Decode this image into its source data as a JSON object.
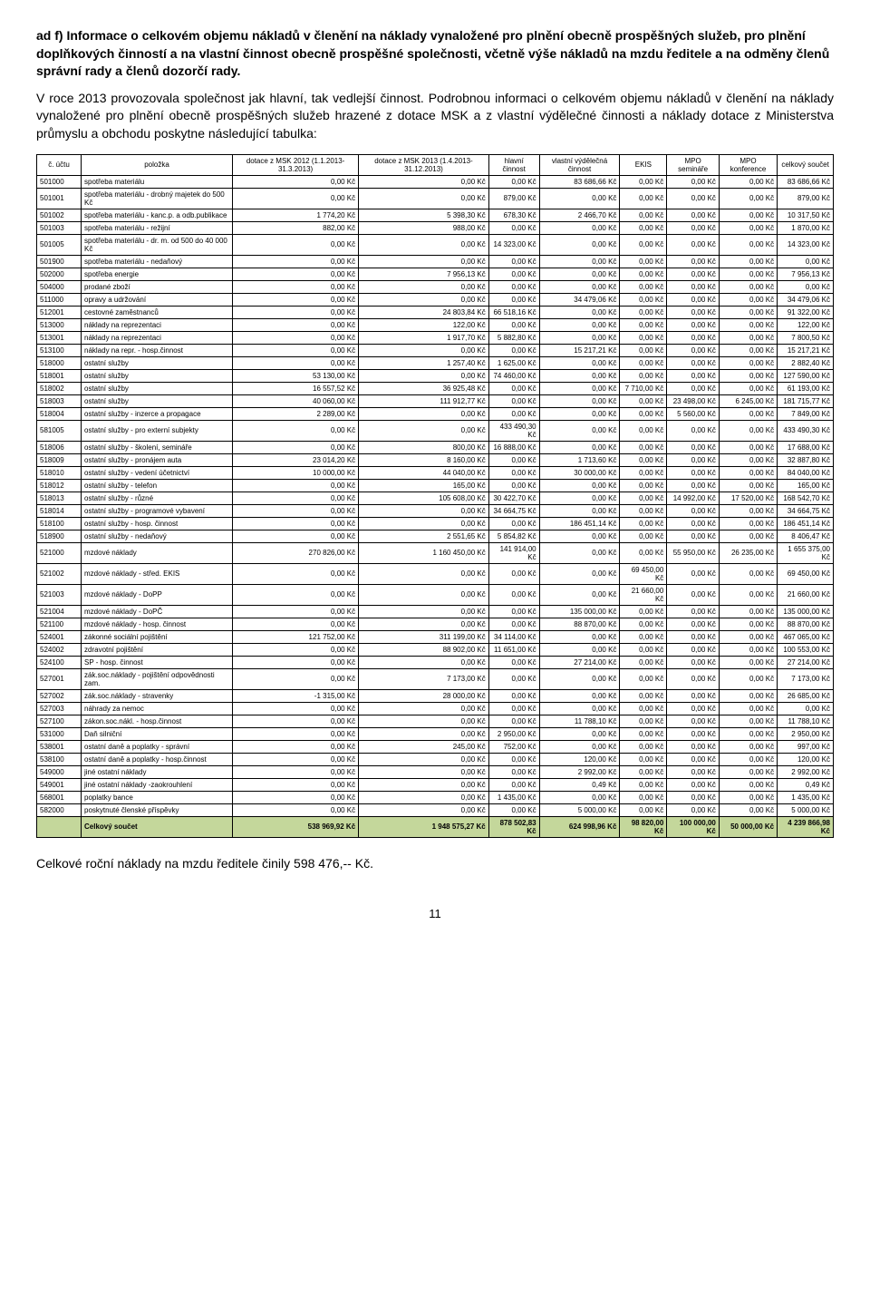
{
  "heading": {
    "prefix": "ad f)",
    "title": "Informace o celkovém objemu nákladů v členění na náklady vynaložené pro plnění obecně prospěšných služeb, pro plnění doplňkových činností a na vlastní činnost obecně prospěšné společnosti, včetně výše nákladů na mzdu ředitele a na odměny členů správní rady a členů dozorčí rady."
  },
  "paragraph": "V roce 2013 provozovala společnost jak hlavní, tak vedlejší činnost. Podrobnou informaci o celkovém objemu nákladů v členění na náklady vynaložené pro plnění obecně prospěšných služeb hrazené z dotace MSK a z vlastní výdělečné činnosti a náklady dotace z Ministerstva průmyslu a obchodu poskytne následující tabulka:",
  "columns": [
    "č. účtu",
    "položka",
    "dotace z MSK 2012 (1.1.2013-31.3.2013)",
    "dotace z MSK 2013 (1.4.2013-31.12.2013)",
    "hlavní činnost",
    "vlastní výdělečná činnost",
    "EKIS",
    "MPO semináře",
    "MPO konference",
    "celkový součet"
  ],
  "rows": [
    [
      "501000",
      "spotřeba materiálu",
      "0,00 Kč",
      "0,00 Kč",
      "0,00 Kč",
      "83 686,66 Kč",
      "0,00 Kč",
      "0,00 Kč",
      "0,00 Kč",
      "83 686,66 Kč"
    ],
    [
      "501001",
      "spotřeba materiálu - drobný majetek do 500 Kč",
      "0,00 Kč",
      "0,00 Kč",
      "879,00 Kč",
      "0,00 Kč",
      "0,00 Kč",
      "0,00 Kč",
      "0,00 Kč",
      "879,00 Kč"
    ],
    [
      "501002",
      "spotřeba materiálu - kanc.p. a odb.publikace",
      "1 774,20 Kč",
      "5 398,30 Kč",
      "678,30 Kč",
      "2 466,70 Kč",
      "0,00 Kč",
      "0,00 Kč",
      "0,00 Kč",
      "10 317,50 Kč"
    ],
    [
      "501003",
      "spotřeba materiálu - režijní",
      "882,00 Kč",
      "988,00 Kč",
      "0,00 Kč",
      "0,00 Kč",
      "0,00 Kč",
      "0,00 Kč",
      "0,00 Kč",
      "1 870,00 Kč"
    ],
    [
      "501005",
      "spotřeba materiálu - dr. m. od 500 do 40 000 Kč",
      "0,00 Kč",
      "0,00 Kč",
      "14 323,00 Kč",
      "0,00 Kč",
      "0,00 Kč",
      "0,00 Kč",
      "0,00 Kč",
      "14 323,00 Kč"
    ],
    [
      "501900",
      "spotřeba materiálu - nedaňový",
      "0,00 Kč",
      "0,00 Kč",
      "0,00 Kč",
      "0,00 Kč",
      "0,00 Kč",
      "0,00 Kč",
      "0,00 Kč",
      "0,00 Kč"
    ],
    [
      "502000",
      "spotřeba energie",
      "0,00 Kč",
      "7 956,13 Kč",
      "0,00 Kč",
      "0,00 Kč",
      "0,00 Kč",
      "0,00 Kč",
      "0,00 Kč",
      "7 956,13 Kč"
    ],
    [
      "504000",
      "prodané zboží",
      "0,00 Kč",
      "0,00 Kč",
      "0,00 Kč",
      "0,00 Kč",
      "0,00 Kč",
      "0,00 Kč",
      "0,00 Kč",
      "0,00 Kč"
    ],
    [
      "511000",
      "opravy a udržování",
      "0,00 Kč",
      "0,00 Kč",
      "0,00 Kč",
      "34 479,06 Kč",
      "0,00 Kč",
      "0,00 Kč",
      "0,00 Kč",
      "34 479,06 Kč"
    ],
    [
      "512001",
      "cestovné zaměstnanců",
      "0,00 Kč",
      "24 803,84 Kč",
      "66 518,16 Kč",
      "0,00 Kč",
      "0,00 Kč",
      "0,00 Kč",
      "0,00 Kč",
      "91 322,00 Kč"
    ],
    [
      "513000",
      "náklady na reprezentaci",
      "0,00 Kč",
      "122,00 Kč",
      "0,00 Kč",
      "0,00 Kč",
      "0,00 Kč",
      "0,00 Kč",
      "0,00 Kč",
      "122,00 Kč"
    ],
    [
      "513001",
      "náklady na reprezentaci",
      "0,00 Kč",
      "1 917,70 Kč",
      "5 882,80 Kč",
      "0,00 Kč",
      "0,00 Kč",
      "0,00 Kč",
      "0,00 Kč",
      "7 800,50 Kč"
    ],
    [
      "513100",
      "náklady na repr. - hosp.činnost",
      "0,00 Kč",
      "0,00 Kč",
      "0,00 Kč",
      "15 217,21 Kč",
      "0,00 Kč",
      "0,00 Kč",
      "0,00 Kč",
      "15 217,21 Kč"
    ],
    [
      "518000",
      "ostatní služby",
      "0,00 Kč",
      "1 257,40 Kč",
      "1 625,00 Kč",
      "0,00 Kč",
      "0,00 Kč",
      "0,00 Kč",
      "0,00 Kč",
      "2 882,40 Kč"
    ],
    [
      "518001",
      "ostatní služby",
      "53 130,00 Kč",
      "0,00 Kč",
      "74 460,00 Kč",
      "0,00 Kč",
      "0,00 Kč",
      "0,00 Kč",
      "0,00 Kč",
      "127 590,00 Kč"
    ],
    [
      "518002",
      "ostatní služby",
      "16 557,52 Kč",
      "36 925,48 Kč",
      "0,00 Kč",
      "0,00 Kč",
      "7 710,00 Kč",
      "0,00 Kč",
      "0,00 Kč",
      "61 193,00 Kč"
    ],
    [
      "518003",
      "ostatní služby",
      "40 060,00 Kč",
      "111 912,77 Kč",
      "0,00 Kč",
      "0,00 Kč",
      "0,00 Kč",
      "23 498,00 Kč",
      "6 245,00 Kč",
      "181 715,77 Kč"
    ],
    [
      "518004",
      "ostatní služby - inzerce a propagace",
      "2 289,00 Kč",
      "0,00 Kč",
      "0,00 Kč",
      "0,00 Kč",
      "0,00 Kč",
      "5 560,00 Kč",
      "0,00 Kč",
      "7 849,00 Kč"
    ],
    [
      "581005",
      "ostatní služby - pro externí subjekty",
      "0,00 Kč",
      "0,00 Kč",
      "433 490,30 Kč",
      "0,00 Kč",
      "0,00 Kč",
      "0,00 Kč",
      "0,00 Kč",
      "433 490,30 Kč"
    ],
    [
      "518006",
      "ostatní služby - školení, semináře",
      "0,00 Kč",
      "800,00 Kč",
      "16 888,00 Kč",
      "0,00 Kč",
      "0,00 Kč",
      "0,00 Kč",
      "0,00 Kč",
      "17 688,00 Kč"
    ],
    [
      "518009",
      "ostatní služby - pronájem auta",
      "23 014,20 Kč",
      "8 160,00 Kč",
      "0,00 Kč",
      "1 713,60 Kč",
      "0,00 Kč",
      "0,00 Kč",
      "0,00 Kč",
      "32 887,80 Kč"
    ],
    [
      "518010",
      "ostatní služby - vedení účetnictví",
      "10 000,00 Kč",
      "44 040,00 Kč",
      "0,00 Kč",
      "30 000,00 Kč",
      "0,00 Kč",
      "0,00 Kč",
      "0,00 Kč",
      "84 040,00 Kč"
    ],
    [
      "518012",
      "ostatní služby - telefon",
      "0,00 Kč",
      "165,00 Kč",
      "0,00 Kč",
      "0,00 Kč",
      "0,00 Kč",
      "0,00 Kč",
      "0,00 Kč",
      "165,00 Kč"
    ],
    [
      "518013",
      "ostatní služby - různé",
      "0,00 Kč",
      "105 608,00 Kč",
      "30 422,70 Kč",
      "0,00 Kč",
      "0,00 Kč",
      "14 992,00 Kč",
      "17 520,00 Kč",
      "168 542,70 Kč"
    ],
    [
      "518014",
      "ostatní služby - programové vybavení",
      "0,00 Kč",
      "0,00 Kč",
      "34 664,75 Kč",
      "0,00 Kč",
      "0,00 Kč",
      "0,00 Kč",
      "0,00 Kč",
      "34 664,75 Kč"
    ],
    [
      "518100",
      "ostatní služby - hosp. činnost",
      "0,00 Kč",
      "0,00 Kč",
      "0,00 Kč",
      "186 451,14 Kč",
      "0,00 Kč",
      "0,00 Kč",
      "0,00 Kč",
      "186 451,14 Kč"
    ],
    [
      "518900",
      "ostatní služby - nedaňový",
      "0,00 Kč",
      "2 551,65 Kč",
      "5 854,82 Kč",
      "0,00 Kč",
      "0,00 Kč",
      "0,00 Kč",
      "0,00 Kč",
      "8 406,47 Kč"
    ],
    [
      "521000",
      "mzdové náklady",
      "270 826,00 Kč",
      "1 160 450,00 Kč",
      "141 914,00 Kč",
      "0,00 Kč",
      "0,00 Kč",
      "55 950,00 Kč",
      "26 235,00 Kč",
      "1 655 375,00 Kč"
    ],
    [
      "521002",
      "mzdové náklady - střed. EKIS",
      "0,00 Kč",
      "0,00 Kč",
      "0,00 Kč",
      "0,00 Kč",
      "69 450,00 Kč",
      "0,00 Kč",
      "0,00 Kč",
      "69 450,00 Kč"
    ],
    [
      "521003",
      "mzdové náklady - DoPP",
      "0,00 Kč",
      "0,00 Kč",
      "0,00 Kč",
      "0,00 Kč",
      "21 660,00 Kč",
      "0,00 Kč",
      "0,00 Kč",
      "21 660,00 Kč"
    ],
    [
      "521004",
      "mzdové náklady - DoPČ",
      "0,00 Kč",
      "0,00 Kč",
      "0,00 Kč",
      "135 000,00 Kč",
      "0,00 Kč",
      "0,00 Kč",
      "0,00 Kč",
      "135 000,00 Kč"
    ],
    [
      "521100",
      "mzdové náklady - hosp. činnost",
      "0,00 Kč",
      "0,00 Kč",
      "0,00 Kč",
      "88 870,00 Kč",
      "0,00 Kč",
      "0,00 Kč",
      "0,00 Kč",
      "88 870,00 Kč"
    ],
    [
      "524001",
      "zákonné sociální pojištění",
      "121 752,00 Kč",
      "311 199,00 Kč",
      "34 114,00 Kč",
      "0,00 Kč",
      "0,00 Kč",
      "0,00 Kč",
      "0,00 Kč",
      "467 065,00 Kč"
    ],
    [
      "524002",
      "zdravotní pojištění",
      "0,00 Kč",
      "88 902,00 Kč",
      "11 651,00 Kč",
      "0,00 Kč",
      "0,00 Kč",
      "0,00 Kč",
      "0,00 Kč",
      "100 553,00 Kč"
    ],
    [
      "524100",
      "SP - hosp. činnost",
      "0,00 Kč",
      "0,00 Kč",
      "0,00 Kč",
      "27 214,00 Kč",
      "0,00 Kč",
      "0,00 Kč",
      "0,00 Kč",
      "27 214,00 Kč"
    ],
    [
      "527001",
      "zák.soc.náklady - pojištění odpovědnosti zam.",
      "0,00 Kč",
      "7 173,00 Kč",
      "0,00 Kč",
      "0,00 Kč",
      "0,00 Kč",
      "0,00 Kč",
      "0,00 Kč",
      "7 173,00 Kč"
    ],
    [
      "527002",
      "zák.soc.náklady - stravenky",
      "-1 315,00 Kč",
      "28 000,00 Kč",
      "0,00 Kč",
      "0,00 Kč",
      "0,00 Kč",
      "0,00 Kč",
      "0,00 Kč",
      "26 685,00 Kč"
    ],
    [
      "527003",
      "náhrady za nemoc",
      "0,00 Kč",
      "0,00 Kč",
      "0,00 Kč",
      "0,00 Kč",
      "0,00 Kč",
      "0,00 Kč",
      "0,00 Kč",
      "0,00 Kč"
    ],
    [
      "527100",
      "zákon.soc.nákl. - hosp.činnost",
      "0,00 Kč",
      "0,00 Kč",
      "0,00 Kč",
      "11 788,10 Kč",
      "0,00 Kč",
      "0,00 Kč",
      "0,00 Kč",
      "11 788,10 Kč"
    ],
    [
      "531000",
      "Daň silniční",
      "0,00 Kč",
      "0,00 Kč",
      "2 950,00 Kč",
      "0,00 Kč",
      "0,00 Kč",
      "0,00 Kč",
      "0,00 Kč",
      "2 950,00 Kč"
    ],
    [
      "538001",
      "ostatní daně a poplatky - správní",
      "0,00 Kč",
      "245,00 Kč",
      "752,00 Kč",
      "0,00 Kč",
      "0,00 Kč",
      "0,00 Kč",
      "0,00 Kč",
      "997,00 Kč"
    ],
    [
      "538100",
      "ostatní daně a poplatky - hosp.činnost",
      "0,00 Kč",
      "0,00 Kč",
      "0,00 Kč",
      "120,00 Kč",
      "0,00 Kč",
      "0,00 Kč",
      "0,00 Kč",
      "120,00 Kč"
    ],
    [
      "549000",
      "jiné ostatní náklady",
      "0,00 Kč",
      "0,00 Kč",
      "0,00 Kč",
      "2 992,00 Kč",
      "0,00 Kč",
      "0,00 Kč",
      "0,00 Kč",
      "2 992,00 Kč"
    ],
    [
      "549001",
      "jiné ostatní náklady -zaokrouhlení",
      "0,00 Kč",
      "0,00 Kč",
      "0,00 Kč",
      "0,49 Kč",
      "0,00 Kč",
      "0,00 Kč",
      "0,00 Kč",
      "0,49 Kč"
    ],
    [
      "568001",
      "poplatky bance",
      "0,00 Kč",
      "0,00 Kč",
      "1 435,00 Kč",
      "0,00 Kč",
      "0,00 Kč",
      "0,00 Kč",
      "0,00 Kč",
      "1 435,00 Kč"
    ],
    [
      "582000",
      "poskytnuté členské příspěvky",
      "0,00 Kč",
      "0,00 Kč",
      "0,00 Kč",
      "5 000,00 Kč",
      "0,00 Kč",
      "0,00 Kč",
      "0,00 Kč",
      "5 000,00 Kč"
    ]
  ],
  "totalRow": [
    "",
    "Celkový součet",
    "538 969,92 Kč",
    "1 948 575,27 Kč",
    "878 502,83 Kč",
    "624 998,96 Kč",
    "98 820,00 Kč",
    "100 000,00 Kč",
    "50 000,00 Kč",
    "4 239 866,98 Kč"
  ],
  "footer": "Celkové roční náklady na mzdu ředitele činily 598 476,-- Kč.",
  "pageNumber": "11",
  "style": {
    "totalRowBg": "#c4d79b",
    "borderColor": "#000000",
    "fontSizeBody": 14,
    "fontSizeTable": 8
  }
}
